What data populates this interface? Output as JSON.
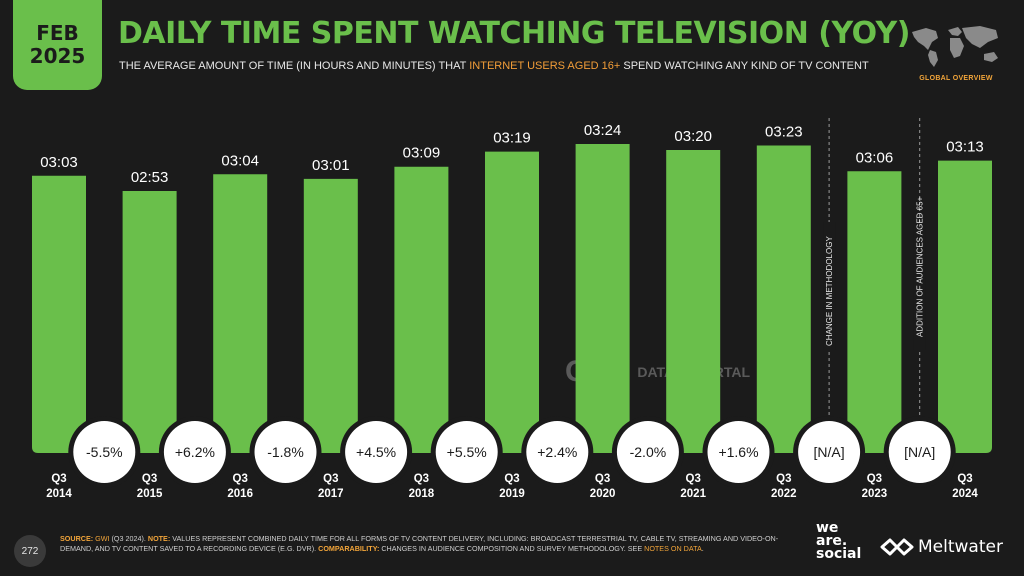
{
  "header": {
    "date_month": "FEB",
    "date_year": "2025",
    "title": "DAILY TIME SPENT WATCHING TELEVISION (YOY)",
    "subtitle_pre": "THE AVERAGE AMOUNT OF TIME (IN HOURS AND MINUTES) THAT ",
    "subtitle_highlight": "INTERNET USERS AGED 16+",
    "subtitle_post": " SPEND WATCHING ANY KIND OF TV CONTENT",
    "map_label": "GLOBAL OVERVIEW"
  },
  "chart_data": {
    "type": "bar",
    "categories": [
      {
        "quarter": "Q3",
        "year": "2014"
      },
      {
        "quarter": "Q3",
        "year": "2015"
      },
      {
        "quarter": "Q3",
        "year": "2016"
      },
      {
        "quarter": "Q3",
        "year": "2017"
      },
      {
        "quarter": "Q3",
        "year": "2018"
      },
      {
        "quarter": "Q3",
        "year": "2019"
      },
      {
        "quarter": "Q3",
        "year": "2020"
      },
      {
        "quarter": "Q3",
        "year": "2021"
      },
      {
        "quarter": "Q3",
        "year": "2022"
      },
      {
        "quarter": "Q3",
        "year": "2023"
      },
      {
        "quarter": "Q3",
        "year": "2024"
      }
    ],
    "values_minutes": [
      183,
      173,
      184,
      181,
      189,
      199,
      204,
      200,
      203,
      186,
      193
    ],
    "value_labels": [
      "03:03",
      "02:53",
      "03:04",
      "03:01",
      "03:09",
      "03:19",
      "03:24",
      "03:20",
      "03:23",
      "03:06",
      "03:13"
    ],
    "changes": [
      "-5.5%",
      "+6.2%",
      "-1.8%",
      "+4.5%",
      "+5.5%",
      "+2.4%",
      "-2.0%",
      "+1.6%",
      "[N/A]",
      "[N/A]"
    ],
    "dividers": [
      {
        "after_index": 8,
        "label": "CHANGE IN METHODOLOGY"
      },
      {
        "after_index": 9,
        "label": "ADDITION OF AUDIENCES AGED 65+"
      }
    ],
    "bar_color": "#6abf4b",
    "ylim": [
      0,
      204
    ]
  },
  "watermark": {
    "gwi": "GWI.",
    "datareportal": "DATAREPORTAL"
  },
  "footer": {
    "page_number": "272",
    "source_label": "SOURCE:",
    "source_text": "GWI",
    "source_detail": " (Q3 2024). ",
    "note_label": "NOTE:",
    "note_text": " VALUES REPRESENT COMBINED DAILY TIME FOR ALL FORMS OF TV CONTENT DELIVERY, INCLUDING: BROADCAST TERRESTRIAL TV, CABLE TV, STREAMING AND VIDEO-ON-DEMAND, AND TV CONTENT SAVED TO A RECORDING DEVICE (E.G. DVR). ",
    "comparability_label": "COMPARABILITY:",
    "comparability_text": " CHANGES IN AUDIENCE COMPOSITION AND SURVEY METHODOLOGY. SEE ",
    "notes_link": "NOTES ON DATA",
    "notes_end": "."
  },
  "brands": {
    "we": "we",
    "are": "are.",
    "social": "social",
    "meltwater": "Meltwater"
  }
}
